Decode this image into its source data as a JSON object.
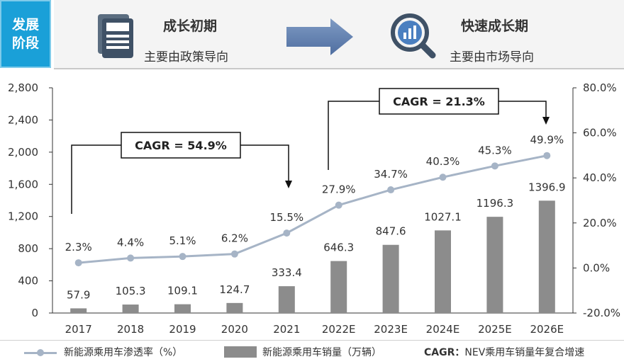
{
  "banner": {
    "tag": "发展\n阶段",
    "stage1": {
      "title": "成长初期",
      "subtitle": "主要由政策导向",
      "icon": "newspaper-icon"
    },
    "stage2": {
      "title": "快速成长期",
      "subtitle": "主要由市场导向",
      "icon": "magnifier-chart-icon"
    },
    "arrow_icon": "right-arrow-icon"
  },
  "chart_data": {
    "type": "bar",
    "categories": [
      "2017",
      "2018",
      "2019",
      "2020",
      "2021",
      "2022E",
      "2023E",
      "2024E",
      "2025E",
      "2026E"
    ],
    "series": [
      {
        "name": "新能源乘用车销量（万辆）",
        "type": "bar",
        "axis": "left",
        "values": [
          57.9,
          105.3,
          109.1,
          124.7,
          333.4,
          646.3,
          847.6,
          1027.1,
          1196.3,
          1396.9
        ],
        "labels": [
          "57.9",
          "105.3",
          "109.1",
          "124.7",
          "333.4",
          "646.3",
          "847.6",
          "1027.1",
          "1196.3",
          "1396.9"
        ]
      },
      {
        "name": "新能源乘用车渗透率（%）",
        "type": "line",
        "axis": "right",
        "values": [
          2.3,
          4.4,
          5.1,
          6.2,
          15.5,
          27.9,
          34.7,
          40.3,
          45.3,
          49.9
        ],
        "labels": [
          "2.3%",
          "4.4%",
          "5.1%",
          "6.2%",
          "15.5%",
          "27.9%",
          "34.7%",
          "40.3%",
          "45.3%",
          "49.9%"
        ]
      }
    ],
    "y_left": {
      "min": 0,
      "max": 2800,
      "ticks": [
        "0",
        "400",
        "800",
        "1,200",
        "1,600",
        "2,000",
        "2,400",
        "2,800"
      ]
    },
    "y_right": {
      "min": -20,
      "max": 80,
      "ticks": [
        "-20.0%",
        "0.0%",
        "20.0%",
        "40.0%",
        "60.0%",
        "80.0%"
      ]
    },
    "annotations": [
      {
        "text": "CAGR = 54.9%",
        "from": "2017",
        "to": "2021"
      },
      {
        "text": "CAGR = 21.3%",
        "from": "2022E",
        "to": "2026E"
      }
    ],
    "colors": {
      "bar": "#8c8c8c",
      "line": "#a6b4c6"
    }
  },
  "legend": {
    "line_label": "新能源乘用车渗透率（%）",
    "bar_label": "新能源乘用车销量（万辆）",
    "note_key": "CAGR：",
    "note_text": "NEV乘用车销量年复合增速"
  }
}
